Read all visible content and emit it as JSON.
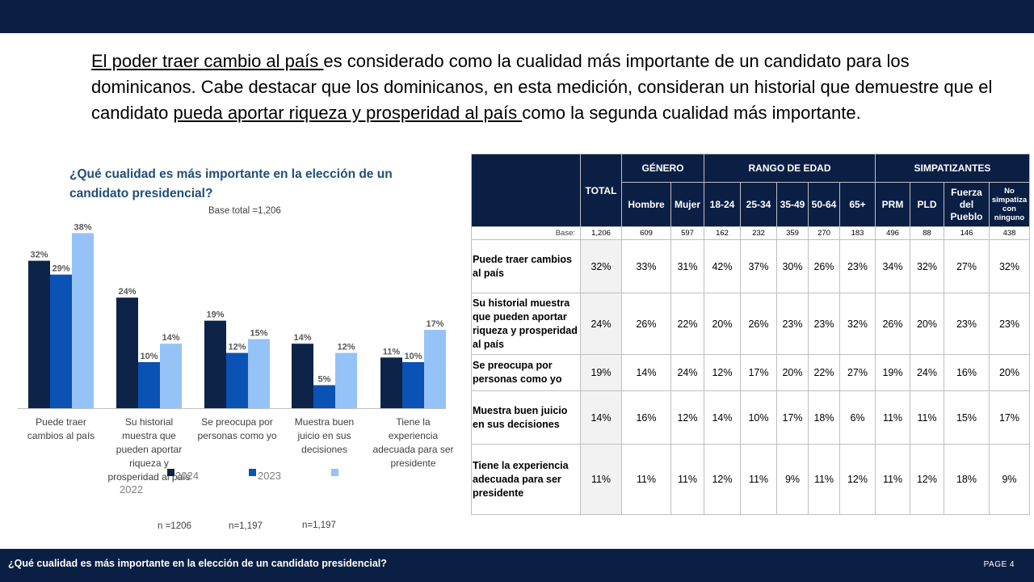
{
  "intro": {
    "underline1": "El poder traer cambio al país ",
    "text1": "es considerado como la cualidad más importante de un candidato para los dominicanos. Cabe destacar que los dominicanos, en esta medición, consideran un historial que demuestre que el candidato ",
    "underline2": "pueda aportar riqueza y prosperidad al país ",
    "text2": "como la segunda cualidad más importante."
  },
  "chart_data": {
    "type": "bar",
    "title": "¿Qué cualidad es más importante en la elección de un candidato presidencial?",
    "subtitle": "Base total =1,206",
    "categories": [
      [
        "Puede traer",
        "cambios al país"
      ],
      [
        "Su historial",
        "muestra que",
        "pueden aportar",
        "riqueza y",
        "prosperidad al país"
      ],
      [
        "Se preocupa por",
        "personas como yo"
      ],
      [
        "Muestra buen",
        "juicio en sus",
        "decisiones"
      ],
      [
        "Tiene la",
        "experiencia",
        "adecuada para ser",
        "presidente"
      ]
    ],
    "series": [
      {
        "name": "2024",
        "color": "#0d2448",
        "values": [
          32,
          24,
          19,
          14,
          11
        ],
        "labels": [
          "32%",
          "24%",
          "19%",
          "14%",
          "11%"
        ]
      },
      {
        "name": "2023",
        "color": "#0a52b4",
        "values": [
          29,
          10,
          12,
          5,
          10
        ],
        "labels": [
          "29%",
          "10%",
          "12%",
          "5%",
          "10%"
        ]
      },
      {
        "name": "2022",
        "color": "#96c3f7",
        "values": [
          38,
          14,
          15,
          12,
          17
        ],
        "labels": [
          "38%",
          "14%",
          "15%",
          "12%",
          "17%"
        ]
      }
    ],
    "ylim": [
      0,
      40
    ],
    "legend": {
      "label_2024": "2024",
      "label_2023": "2023",
      "label_2022": "2022"
    },
    "n_labels": [
      "n =1206",
      "n=1,197",
      "n=1,197"
    ]
  },
  "table": {
    "headers": {
      "total": "TOTAL",
      "genero": "GÉNERO",
      "edad": "RANGO DE EDAD",
      "simpatizantes": "SIMPATIZANTES",
      "hombre": "Hombre",
      "mujer": "Mujer",
      "e1": "18-24",
      "e2": "25-34",
      "e3": "35-49",
      "e4": "50-64",
      "e5": "65+",
      "prm": "PRM",
      "pld": "PLD",
      "fp": "Fuerza del Pueblo",
      "no": "No simpatiza con ninguno"
    },
    "base": {
      "label": "Base:",
      "values": [
        "1,206",
        "609",
        "597",
        "162",
        "232",
        "359",
        "270",
        "183",
        "496",
        "88",
        "146",
        "438"
      ]
    },
    "rows": [
      {
        "label": "Puede traer cambios al país",
        "values": [
          "32%",
          "33%",
          "31%",
          "42%",
          "37%",
          "30%",
          "26%",
          "23%",
          "34%",
          "32%",
          "27%",
          "32%"
        ]
      },
      {
        "label": "Su historial muestra que pueden aportar riqueza y prosperidad al país",
        "values": [
          "24%",
          "26%",
          "22%",
          "20%",
          "26%",
          "23%",
          "23%",
          "32%",
          "26%",
          "20%",
          "23%",
          "23%"
        ]
      },
      {
        "label": "Se preocupa por personas como yo",
        "values": [
          "19%",
          "14%",
          "24%",
          "12%",
          "17%",
          "20%",
          "22%",
          "27%",
          "19%",
          "24%",
          "16%",
          "20%"
        ]
      },
      {
        "label": "Muestra buen juicio en sus decisiones",
        "values": [
          "14%",
          "16%",
          "12%",
          "14%",
          "10%",
          "17%",
          "18%",
          "6%",
          "11%",
          "11%",
          "15%",
          "17%"
        ]
      },
      {
        "label": "Tiene la experiencia adecuada para ser presidente",
        "values": [
          "11%",
          "11%",
          "11%",
          "12%",
          "11%",
          "9%",
          "11%",
          "12%",
          "11%",
          "12%",
          "18%",
          "9%"
        ]
      }
    ]
  },
  "footer": {
    "title": "¿Qué cualidad es más importante en la elección de un candidato presidencial?",
    "page": "PAGE  4"
  }
}
